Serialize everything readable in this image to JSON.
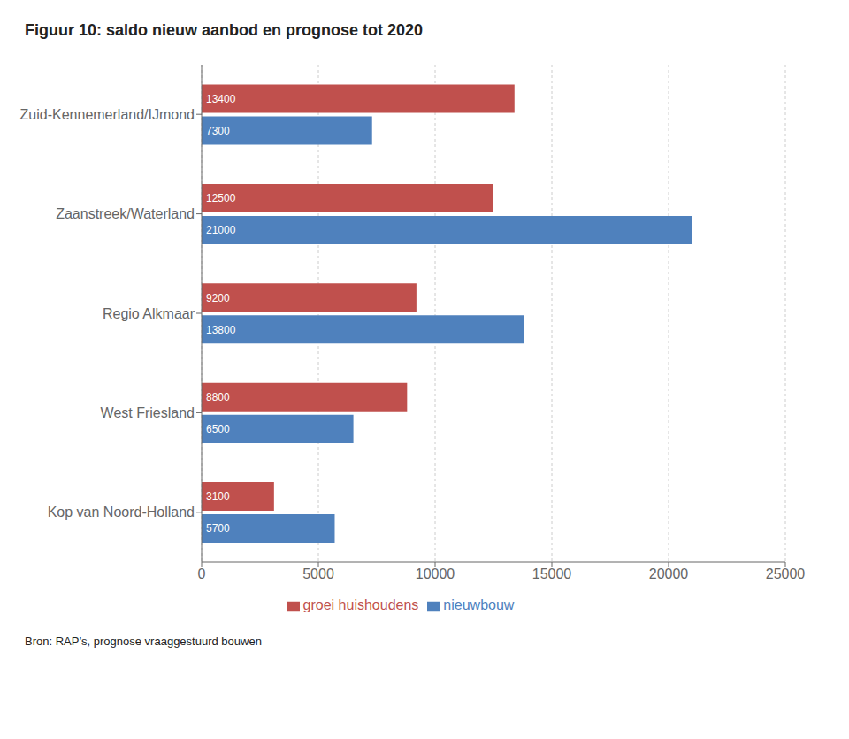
{
  "chart_data": {
    "type": "bar",
    "orientation": "horizontal",
    "title": "Figuur 10: saldo nieuw aanbod en prognose tot 2020",
    "annotations": [
      "Bron: RAP’s, prognose vraaggestuurd bouwen"
    ],
    "categories": [
      "Zuid-Kennemerland/IJmond",
      "Zaanstreek/Waterland",
      "Regio Alkmaar",
      "West Friesland",
      "Kop van Noord-Holland"
    ],
    "series": [
      {
        "name": "groei huishoudens",
        "color": "#c0504d",
        "values": [
          13400,
          12500,
          9200,
          8800,
          3100
        ]
      },
      {
        "name": "nieuwbouw",
        "color": "#4f81bd",
        "values": [
          7300,
          21000,
          13800,
          6500,
          5700
        ]
      }
    ],
    "xlim": [
      0,
      25000
    ],
    "xticks": [
      0,
      5000,
      10000,
      15000,
      20000,
      25000
    ],
    "grid": true,
    "legend": "bottom",
    "data_labels": true
  }
}
